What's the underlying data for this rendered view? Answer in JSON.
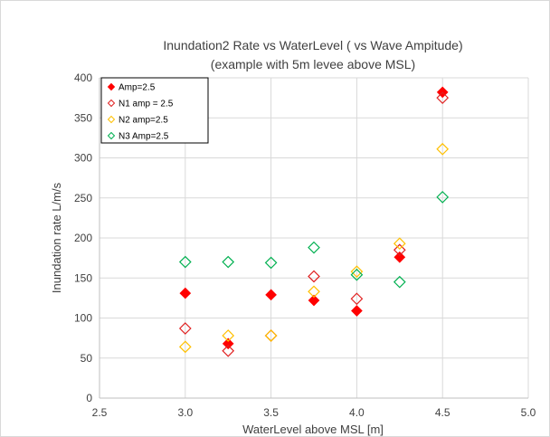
{
  "chart_data": {
    "type": "scatter",
    "title": "Inundation2 Rate vs WaterLevel ( vs Wave Ampitude)",
    "subtitle": "(example with 5m levee above MSL)",
    "xlabel": "WaterLevel above MSL  [m]",
    "ylabel": "Inundation rate L/m/s",
    "xlim": [
      2.5,
      5.0
    ],
    "ylim": [
      0,
      400
    ],
    "xticks": [
      "2.5",
      "3.0",
      "3.5",
      "4.0",
      "4.5",
      "5.0"
    ],
    "yticks": [
      "0",
      "50",
      "100",
      "150",
      "200",
      "250",
      "300",
      "350",
      "400"
    ],
    "grid": true,
    "legend_position": "top-left",
    "series": [
      {
        "name": "Amp=2.5",
        "color": "#ff0000",
        "marker": "filled-diamond",
        "x": [
          3.0,
          3.25,
          3.5,
          3.75,
          4.0,
          4.25,
          4.5
        ],
        "y": [
          131,
          68,
          129,
          122,
          109,
          176,
          382
        ]
      },
      {
        "name": "N1 amp = 2.5",
        "color": "#e02020",
        "marker": "open-diamond",
        "x": [
          3.0,
          3.25,
          3.5,
          3.75,
          4.0,
          4.25,
          4.5
        ],
        "y": [
          87,
          59,
          78,
          152,
          124,
          185,
          375
        ]
      },
      {
        "name": "N2 amp=2.5",
        "color": "#ffc000",
        "marker": "open-diamond",
        "x": [
          3.0,
          3.25,
          3.5,
          3.75,
          4.0,
          4.25,
          4.5
        ],
        "y": [
          64,
          78,
          78,
          133,
          158,
          193,
          311
        ]
      },
      {
        "name": "N3 Amp=2.5",
        "color": "#00b050",
        "marker": "open-diamond",
        "x": [
          3.0,
          3.25,
          3.5,
          3.75,
          4.0,
          4.25,
          4.5
        ],
        "y": [
          170,
          170,
          169,
          188,
          154,
          145,
          251
        ]
      }
    ]
  }
}
